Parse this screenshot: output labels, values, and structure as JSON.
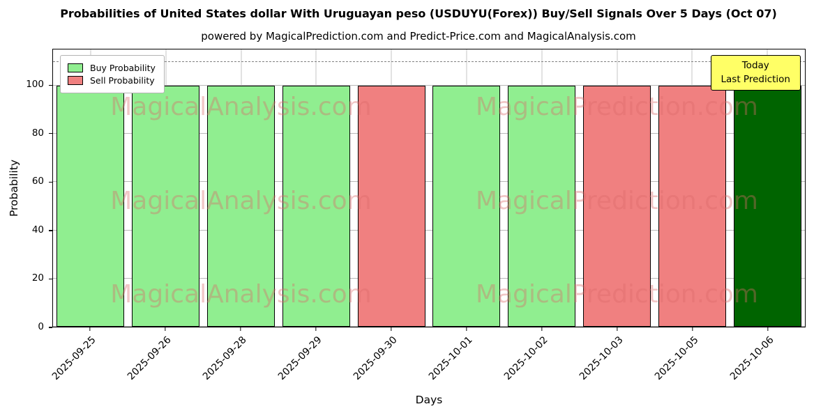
{
  "chart_data": {
    "type": "bar",
    "title": "Probabilities of United States dollar With Uruguayan peso (USDUYU(Forex)) Buy/Sell Signals Over 5 Days (Oct 07)",
    "subtitle": "powered by MagicalPrediction.com and Predict-Price.com and MagicalAnalysis.com",
    "xlabel": "Days",
    "ylabel": "Probability",
    "ylim": [
      0,
      115
    ],
    "yticks": [
      0,
      20,
      40,
      60,
      80,
      100
    ],
    "dashed_line_y": 110,
    "categories": [
      "2025-09-25",
      "2025-09-26",
      "2025-09-28",
      "2025-09-29",
      "2025-09-30",
      "2025-10-01",
      "2025-10-02",
      "2025-10-03",
      "2025-10-05",
      "2025-10-06"
    ],
    "values": [
      100,
      100,
      100,
      100,
      100,
      100,
      100,
      100,
      100,
      100
    ],
    "signals": [
      "buy",
      "buy",
      "buy",
      "buy",
      "sell",
      "buy",
      "buy",
      "sell",
      "sell",
      "today"
    ],
    "colors": {
      "buy": "#90EE90",
      "sell": "#F08080",
      "today": "#006400"
    },
    "legend": [
      {
        "label": "Buy Probability",
        "color": "#90EE90"
      },
      {
        "label": "Sell Probability",
        "color": "#F08080"
      }
    ],
    "annotation": {
      "lines": [
        "Today",
        "Last Prediction"
      ],
      "bg": "#FFFF66"
    },
    "watermarks": [
      "MagicalAnalysis.com",
      "MagicalPrediction.com"
    ],
    "grid": true,
    "legend_position": "top-left"
  }
}
